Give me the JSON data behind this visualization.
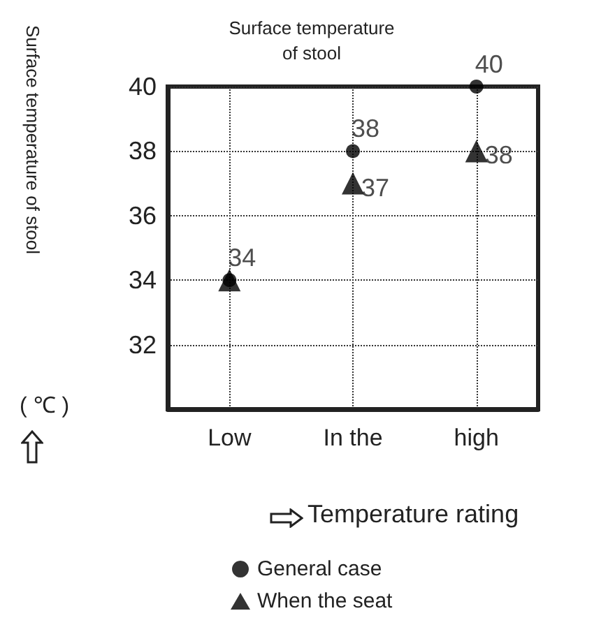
{
  "chart_data": {
    "type": "scatter",
    "title": "Surface temperature\nof stool",
    "ylabel": "Surface temperature of stool",
    "xlabel": "Temperature rating",
    "annotations": [
      "( ℃ )"
    ],
    "categories": [
      "Low",
      "In the",
      "high"
    ],
    "series": [
      {
        "name": "General case",
        "color": "#000000",
        "marker": "circle",
        "values": [
          34,
          38,
          40
        ],
        "value_labels": [
          "34",
          "38",
          "40"
        ]
      },
      {
        "name": "When the seat",
        "color": "#000000",
        "marker": "triangle",
        "values": [
          34,
          37,
          38
        ],
        "value_labels": [
          null,
          "37",
          "38"
        ]
      }
    ],
    "ylim": [
      30,
      40
    ],
    "yticks": [
      32,
      34,
      36,
      38,
      40
    ],
    "grid": true,
    "line_style": "dotted",
    "legend": "bottom"
  }
}
